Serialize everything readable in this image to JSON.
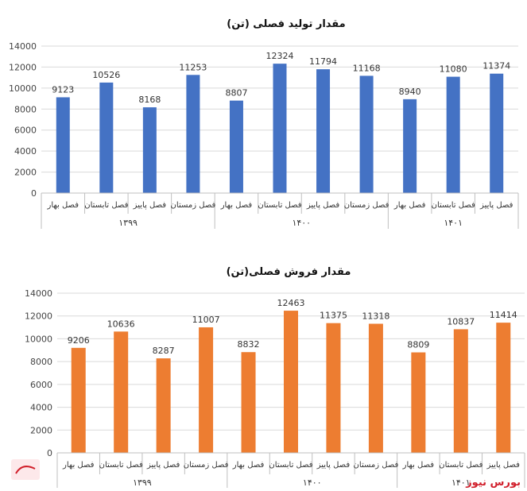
{
  "chart_data": [
    {
      "type": "bar",
      "title": "مقدار تولید فصلی (تن)",
      "categories": [
        "فصل بهار",
        "فصل تابستان",
        "فصل پاییز",
        "فصل زمستان",
        "فصل بهار",
        "فصل تابستان",
        "فصل پاییز",
        "فصل زمستان",
        "فصل بهار",
        "فصل تابستان",
        "فصل پاییز"
      ],
      "groups": [
        {
          "label": "۱۳۹۹",
          "count": 4
        },
        {
          "label": "۱۴۰۰",
          "count": 4
        },
        {
          "label": "۱۴۰۱",
          "count": 3
        }
      ],
      "values": [
        9123,
        10526,
        8168,
        11253,
        8807,
        12324,
        11794,
        11168,
        8940,
        11080,
        11374
      ],
      "yticks": [
        0,
        2000,
        4000,
        6000,
        8000,
        10000,
        12000,
        14000
      ],
      "ylim": [
        0,
        14000
      ],
      "color": "#4472c4",
      "grid": true
    },
    {
      "type": "bar",
      "title": "مقدار فروش فصلی(تن)",
      "categories": [
        "فصل بهار",
        "فصل تابستان",
        "فصل پاییز",
        "فصل زمستان",
        "فصل بهار",
        "فصل تابستان",
        "فصل پاییز",
        "فصل زمستان",
        "فصل بهار",
        "فصل تابستان",
        "فصل پاییز"
      ],
      "groups": [
        {
          "label": "۱۳۹۹",
          "count": 4
        },
        {
          "label": "۱۴۰۰",
          "count": 4
        },
        {
          "label": "۱۴۰۱",
          "count": 3
        }
      ],
      "values": [
        9206,
        10636,
        8287,
        11007,
        8832,
        12463,
        11375,
        11318,
        8809,
        10837,
        11414
      ],
      "yticks": [
        0,
        2000,
        4000,
        6000,
        8000,
        10000,
        12000,
        14000
      ],
      "ylim": [
        0,
        14000
      ],
      "color": "#ed7d31",
      "grid": true
    }
  ],
  "watermark": {
    "text": "بورس نیوز",
    "color": "#d11f2b"
  }
}
